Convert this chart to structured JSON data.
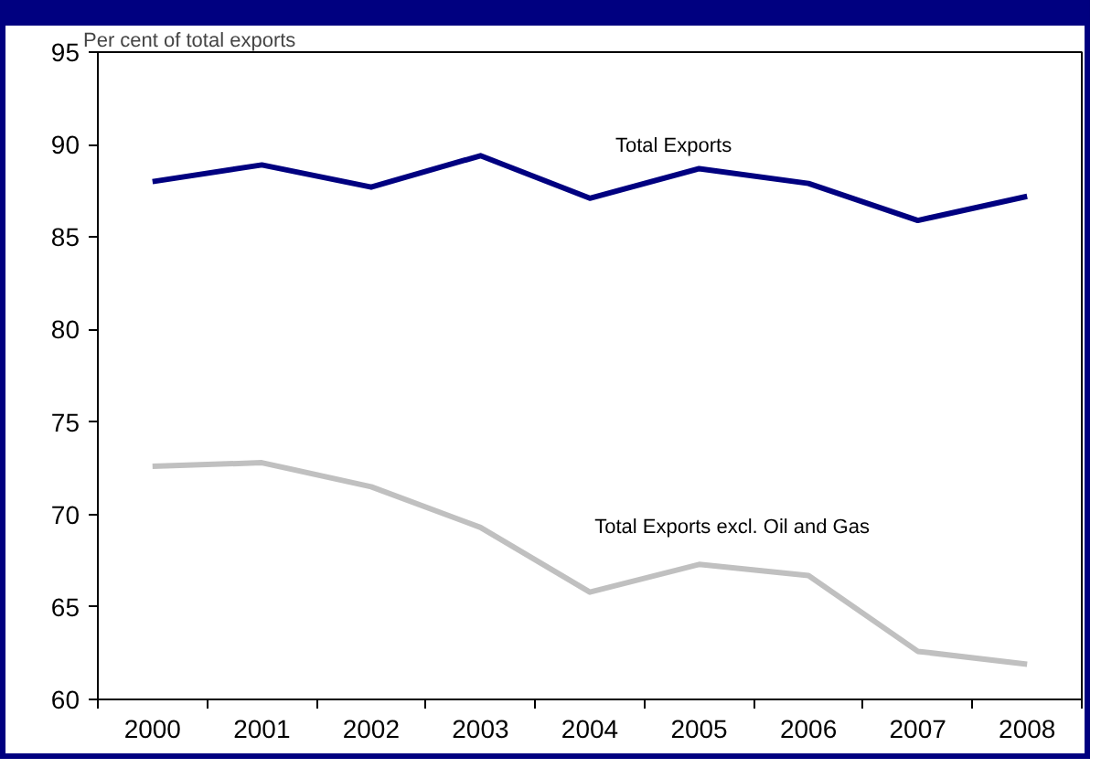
{
  "chart_data": {
    "type": "line",
    "ylabel": "Per cent of total exports",
    "categories": [
      "2000",
      "2001",
      "2002",
      "2003",
      "2004",
      "2005",
      "2006",
      "2007",
      "2008"
    ],
    "series": [
      {
        "name": "Total Exports",
        "color": "#000080",
        "values": [
          88.0,
          88.9,
          87.7,
          89.4,
          87.1,
          88.7,
          87.9,
          85.9,
          87.2
        ]
      },
      {
        "name": "Total Exports excl. Oil and Gas",
        "color": "#c0c0c0",
        "values": [
          72.6,
          72.8,
          71.5,
          69.3,
          65.8,
          67.3,
          66.7,
          62.6,
          61.9
        ]
      }
    ],
    "ylim": [
      60,
      95
    ],
    "yticks": [
      60,
      65,
      70,
      75,
      80,
      85,
      90,
      95
    ],
    "grid": false,
    "legend": false,
    "marker": "none",
    "line_style": "solid"
  }
}
